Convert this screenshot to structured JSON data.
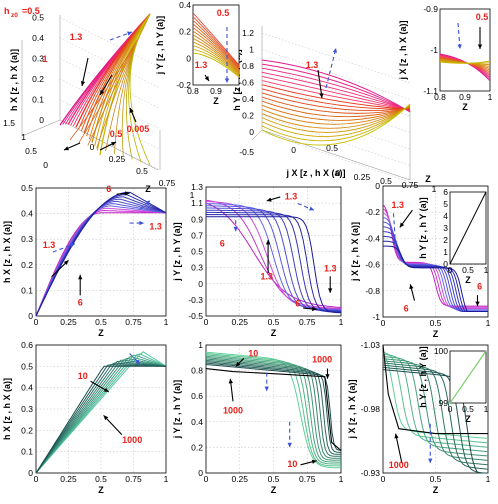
{
  "figure": {
    "top_label": "h",
    "top_label_sub": "z0",
    "top_label_value": "=0.5"
  },
  "chart_data": [
    {
      "id": "p3d-left",
      "type": "line",
      "zlabel": "h X [z , h X (a)]",
      "xlabel": "Z",
      "zticks": [
        "0",
        "0.1",
        "0.2",
        "0.3",
        "0.4",
        "0.5"
      ],
      "xticks": [
        "0",
        "0.25",
        "0.5",
        "0.75",
        "1"
      ],
      "yticks": [
        "0",
        "0.5",
        "1",
        "1.5"
      ],
      "annotations": [
        "1.3",
        "1",
        "0.5",
        "0.005"
      ],
      "series_values": [
        0.005,
        0.5,
        1,
        1.3
      ]
    },
    {
      "id": "p3d-right",
      "type": "line",
      "zlabel": "h Y [z , h Y (a)]",
      "xlabel": "Z",
      "ylabel": "j X [z , h X (a)]",
      "zticks": [
        "0",
        "0.2",
        "0.4",
        "0.6",
        "0.8",
        "1",
        "1.2"
      ],
      "xticks": [
        "0",
        "0.25",
        "0.5",
        "0.75",
        "1"
      ],
      "yticks": [
        "-0.5",
        "0",
        "0.5"
      ],
      "annotations": [
        "1.3"
      ]
    },
    {
      "id": "inset-jy",
      "type": "line",
      "ylabel": "j Y [z , h Y (a)]",
      "xlabel": "Z",
      "xticks": [
        "0.8",
        "0.9",
        "1"
      ],
      "yticks": [
        "-0.2",
        "0",
        "0.2",
        "0.4"
      ],
      "annotations": [
        "0.5",
        "1.3"
      ]
    },
    {
      "id": "inset-jx",
      "type": "line",
      "ylabel": "j X [z , h X (a)]",
      "xlabel": "Z",
      "xticks": [
        "0.8",
        "0.9",
        "1"
      ],
      "yticks": [
        "-1.1",
        "-1",
        "-0.9"
      ],
      "annotations": [
        "0.5"
      ]
    },
    {
      "id": "p-hx-mid",
      "type": "line",
      "ylabel": "h X [z , h X (a)]",
      "xlabel": "Z",
      "ylim": [
        0,
        0.62
      ],
      "xlim": [
        0,
        1
      ],
      "xticks": [
        "0",
        "0.25",
        "0.5",
        "0.75",
        "1"
      ],
      "yticks": [
        "0",
        "0.1",
        "0.2",
        "0.3",
        "0.4",
        "0.5"
      ],
      "annotations": [
        "6",
        "1.3",
        "6",
        "1.3"
      ],
      "series": [
        {
          "param": 6,
          "x": [
            0,
            0.25,
            0.5,
            0.75,
            1
          ],
          "y": [
            0,
            0.22,
            0.44,
            0.6,
            0.5
          ]
        },
        {
          "param": 1.3,
          "x": [
            0,
            0.25,
            0.5,
            0.75,
            1
          ],
          "y": [
            0,
            0.26,
            0.46,
            0.5,
            0.5
          ]
        }
      ]
    },
    {
      "id": "p-jy-mid",
      "type": "line",
      "ylabel": "j Y [z , h Y (a)]",
      "xlabel": "Z",
      "ylim": [
        -0.5,
        1.45
      ],
      "xlim": [
        0,
        1
      ],
      "xticks": [
        "0",
        "0.25",
        "0.5",
        "0.75",
        "1"
      ],
      "yticks": [
        "-0.5",
        "-0.3",
        "0",
        "0.3",
        "0.5",
        "0.7",
        "0.9",
        "1.1",
        "1.3"
      ],
      "annotations": [
        "1.3",
        "6",
        "1.3",
        "1.3",
        "6"
      ],
      "series": [
        {
          "param": 6,
          "x": [
            0,
            0.25,
            0.5,
            0.7,
            0.8,
            1
          ],
          "y": [
            1.0,
            0.95,
            0.85,
            0.6,
            -0.4,
            -0.45
          ]
        },
        {
          "param": 1.3,
          "x": [
            0,
            0.25,
            0.5,
            0.75,
            1
          ],
          "y": [
            1.3,
            1.15,
            0.6,
            0.05,
            -0.3
          ]
        }
      ]
    },
    {
      "id": "p-jx-mid",
      "type": "line",
      "ylabel": "j X [z , h X (a)]",
      "xlabel": "Z",
      "ylim": [
        -1.1,
        0.1
      ],
      "xlim": [
        0,
        1
      ],
      "xticks": [
        "0",
        "0.5",
        "1"
      ],
      "yticks": [
        "-1",
        "-0.8",
        "-0.6",
        "-0.4",
        "-0.2",
        "0"
      ],
      "annotations": [
        "1.3",
        "6",
        "6"
      ],
      "series": [
        {
          "param": 6,
          "x": [
            0,
            0.2,
            0.4,
            0.7,
            1
          ],
          "y": [
            -0.45,
            -0.6,
            -0.6,
            -1.0,
            -1.0
          ]
        },
        {
          "param": 1.3,
          "x": [
            0,
            0.2,
            0.5,
            0.8,
            1
          ],
          "y": [
            -0.05,
            -0.6,
            -0.85,
            -1.0,
            -1.02
          ]
        }
      ]
    },
    {
      "id": "inset-hy",
      "type": "line",
      "ylabel": "h Y [z , h Y (a)]",
      "xlabel": "Z",
      "xticks": [
        "0",
        "0.5",
        "1"
      ],
      "yticks": [
        "0",
        "1",
        "2",
        "3",
        "4",
        "5",
        "6"
      ],
      "series": [
        {
          "x": [
            0,
            1
          ],
          "y": [
            0,
            6
          ]
        }
      ]
    },
    {
      "id": "p-hx-bot",
      "type": "line",
      "ylabel": "h X [z , h X (a)]",
      "xlabel": "Z",
      "ylim": [
        0,
        0.6
      ],
      "xlim": [
        0,
        1
      ],
      "xticks": [
        "0",
        "0.25",
        "0.5",
        "0.75",
        "1"
      ],
      "yticks": [
        "0",
        "0.1",
        "0.2",
        "0.3",
        "0.4",
        "0.5",
        "0.6"
      ],
      "annotations": [
        "10",
        "1000"
      ],
      "series": [
        {
          "param": 10,
          "x": [
            0,
            0.25,
            0.5,
            0.8,
            1
          ],
          "y": [
            0,
            0.16,
            0.32,
            0.57,
            0.5
          ]
        },
        {
          "param": 1000,
          "x": [
            0,
            0.25,
            0.5,
            0.75,
            1
          ],
          "y": [
            0,
            0.13,
            0.26,
            0.38,
            0.5
          ]
        }
      ]
    },
    {
      "id": "p-jy-bot",
      "type": "line",
      "ylabel": "j Y [z , h Y (a)]",
      "xlabel": "Z",
      "ylim": [
        -0.2,
        1.05
      ],
      "xlim": [
        0,
        1
      ],
      "xticks": [
        "0",
        "0.25",
        "0.5",
        "0.75",
        "1"
      ],
      "yticks": [
        "0",
        "0.2",
        "0.4",
        "0.6",
        "0.8",
        "1"
      ],
      "annotations": [
        "10",
        "1000",
        "1000",
        "10"
      ],
      "series": [
        {
          "param": 1000,
          "x": [
            0,
            0.1,
            0.5,
            0.9,
            0.95,
            1
          ],
          "y": [
            0.85,
            0.8,
            0.78,
            0.74,
            0.05,
            0.02
          ]
        },
        {
          "param": 10,
          "x": [
            0,
            0.25,
            0.5,
            0.75,
            0.85,
            1
          ],
          "y": [
            0.98,
            0.9,
            0.85,
            0.7,
            -0.15,
            -0.15
          ]
        }
      ]
    },
    {
      "id": "p-jx-bot",
      "type": "line",
      "ylabel": "j X [z , h X (a)]",
      "xlabel": "Z",
      "ylim": [
        -1.03,
        -0.9
      ],
      "xlim": [
        0,
        1
      ],
      "xticks": [
        "0",
        "0.5",
        "1"
      ],
      "yticks": [
        "-0.93",
        "-0.98",
        "-1.03"
      ],
      "annotations": [
        "1000"
      ],
      "series": [
        {
          "param": 1000,
          "x": [
            0,
            0.2,
            0.5,
            1
          ],
          "y": [
            -0.92,
            -0.975,
            -0.99,
            -0.99
          ]
        },
        {
          "param": 10,
          "x": [
            0,
            0.3,
            0.6,
            0.9,
            1
          ],
          "y": [
            -0.93,
            -0.96,
            -0.985,
            -1.0,
            -1.01
          ]
        }
      ]
    },
    {
      "id": "inset-hy2",
      "type": "line",
      "ylabel": "h Y [z , h Y (a)]",
      "xlabel": "Z",
      "xticks": [
        "0",
        "0.5",
        "1"
      ],
      "yticks": [
        "99",
        "100"
      ],
      "series": [
        {
          "x": [
            0,
            1
          ],
          "y": [
            99,
            100
          ]
        }
      ]
    }
  ]
}
